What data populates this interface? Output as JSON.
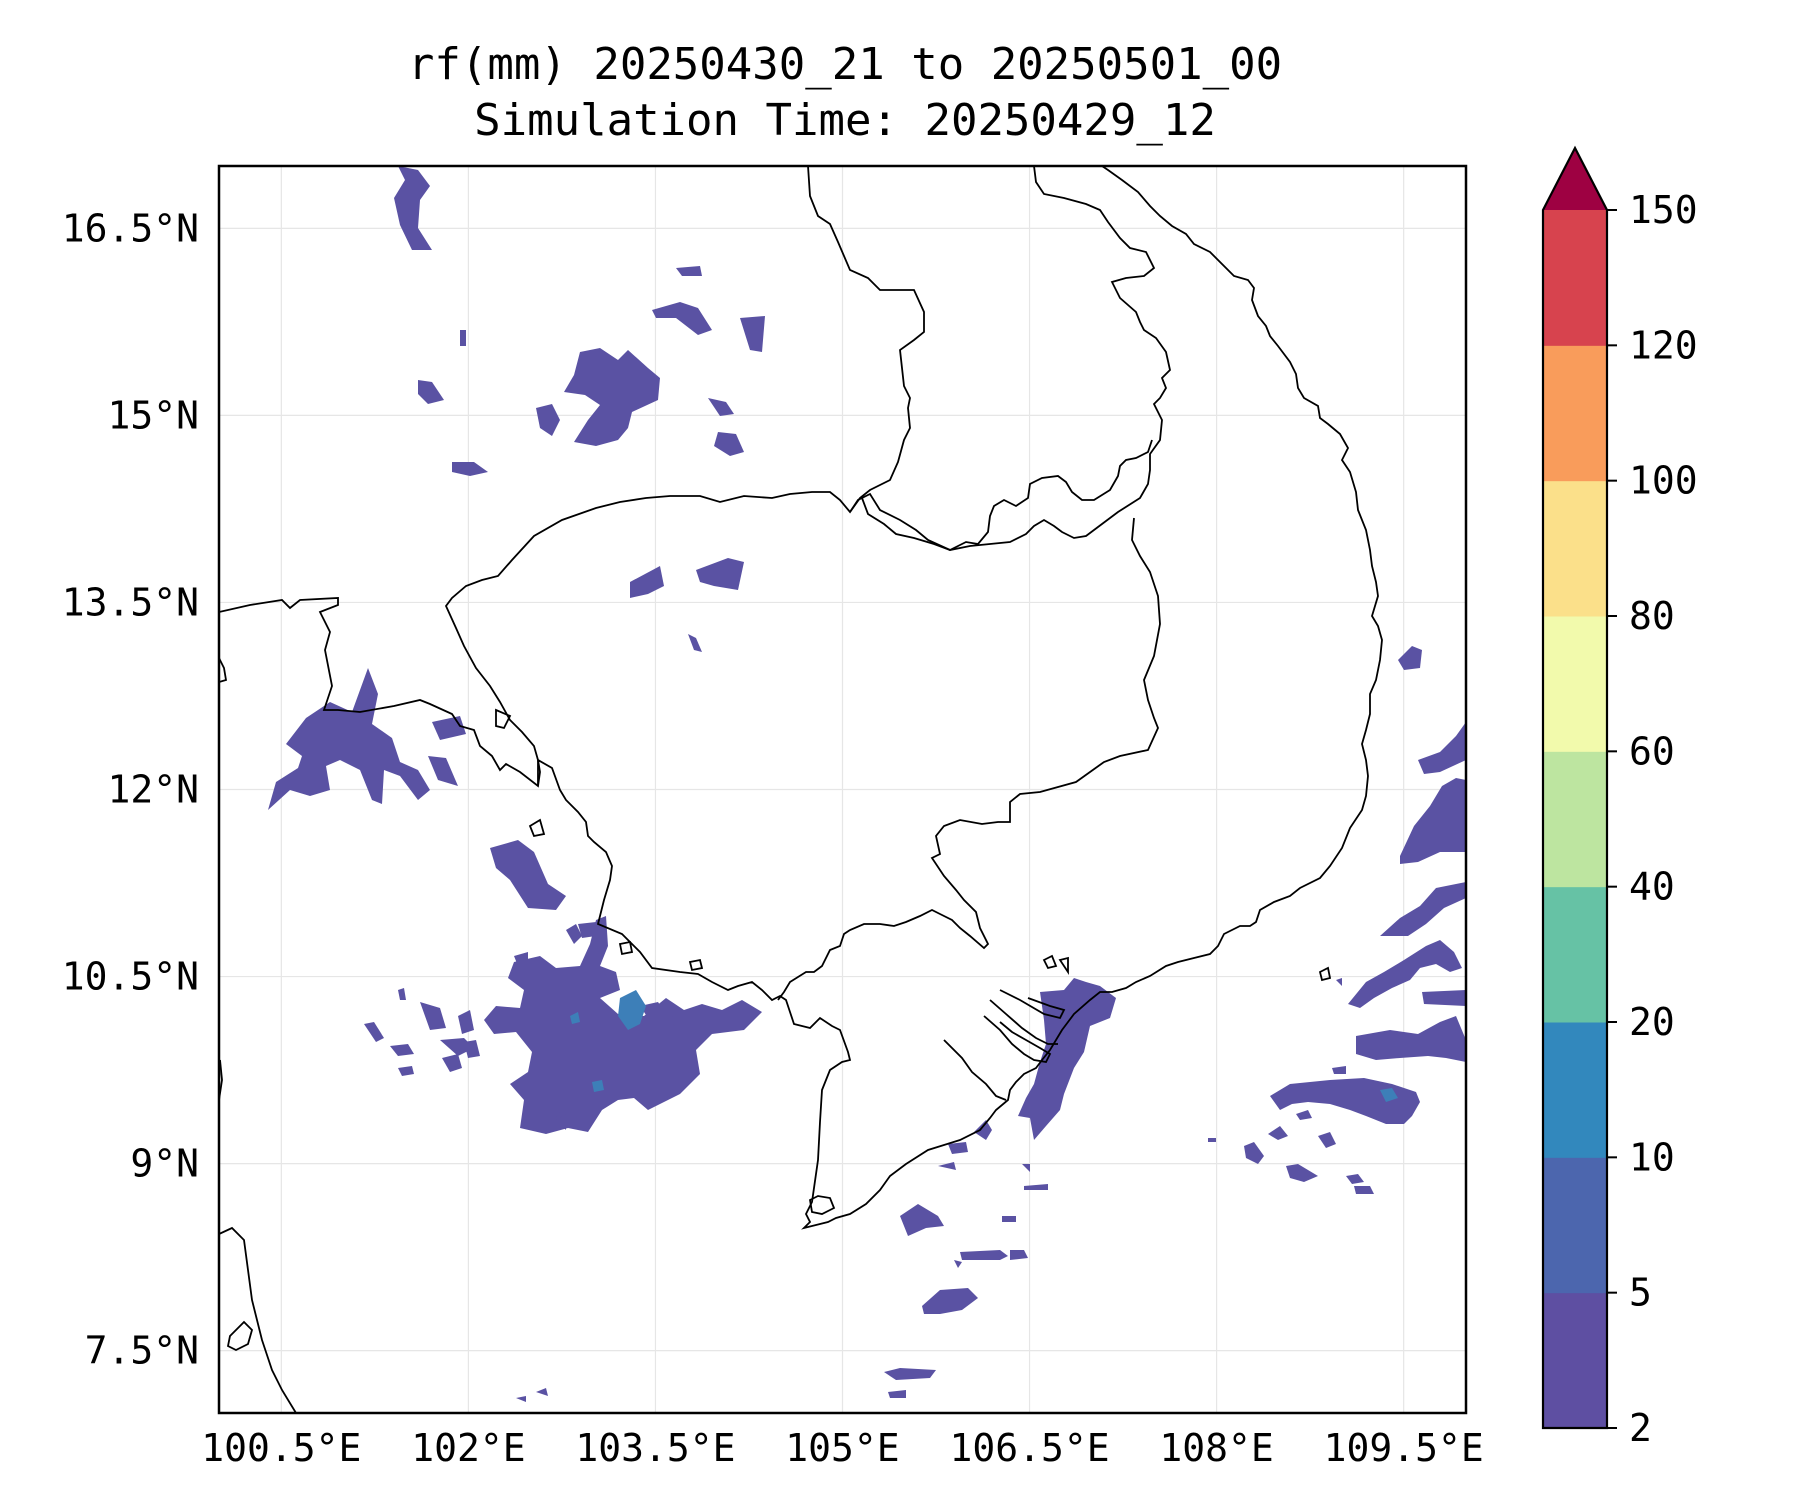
{
  "title_line1": "rf(mm) 20250430_21 to 20250501_00",
  "title_line2": "Simulation Time: 20250429_12",
  "map": {
    "lon_range": [
      100.0,
      110.0
    ],
    "lat_range": [
      7.0,
      17.0
    ],
    "lon_ticks": [
      {
        "value": 100.5,
        "label": "100.5°E"
      },
      {
        "value": 102.0,
        "label": "102°E"
      },
      {
        "value": 103.5,
        "label": "103.5°E"
      },
      {
        "value": 105.0,
        "label": "105°E"
      },
      {
        "value": 106.5,
        "label": "106.5°E"
      },
      {
        "value": 108.0,
        "label": "108°E"
      },
      {
        "value": 109.5,
        "label": "109.5°E"
      }
    ],
    "lat_ticks": [
      {
        "value": 16.5,
        "label": "16.5°N"
      },
      {
        "value": 15.0,
        "label": "15°N"
      },
      {
        "value": 13.5,
        "label": "13.5°N"
      },
      {
        "value": 12.0,
        "label": "12°N"
      },
      {
        "value": 10.5,
        "label": "10.5°N"
      },
      {
        "value": 9.0,
        "label": "9°N"
      },
      {
        "value": 7.5,
        "label": "7.5°N"
      }
    ],
    "grid": true,
    "coastline_color": "#000000"
  },
  "colorbar": {
    "levels": [
      "2",
      "5",
      "10",
      "20",
      "40",
      "60",
      "80",
      "100",
      "120",
      "150"
    ],
    "colors": [
      "#5e4fa2",
      "#4c66ae",
      "#3288bd",
      "#66c2a5",
      "#bde5a0",
      "#f2faac",
      "#fbe08a",
      "#f99c5b",
      "#d7434e"
    ],
    "extend_color": "#9e0142",
    "extend": "max"
  },
  "rain_fill_color": "#5a52a3",
  "rain_core_color": "#3d7fb8"
}
